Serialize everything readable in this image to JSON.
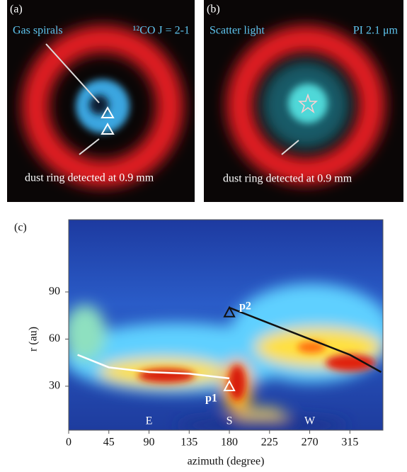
{
  "panels": [
    {
      "label": "(a)",
      "title": "Gas spirals",
      "tag": "¹²CO J = 2-1",
      "caption": "dust ring detected at 0.9 mm"
    },
    {
      "label": "(b)",
      "title": "Scatter light",
      "tag": "PI 2.1 μm",
      "caption": "dust ring detected at 0.9 mm"
    }
  ],
  "chart_data": {
    "type": "line",
    "label": "(c)",
    "xlabel": "azimuth (degree)",
    "ylabel": "r (au)",
    "xlim": [
      0,
      352
    ],
    "ylim": [
      2,
      136
    ],
    "xticks": [
      0,
      45,
      90,
      135,
      180,
      225,
      270,
      315
    ],
    "yticks": [
      30,
      60,
      90
    ],
    "series": [
      {
        "color": "#ffffff",
        "x": [
          10,
          45,
          90,
          135,
          180
        ],
        "values": [
          50,
          42,
          39,
          38,
          35
        ]
      },
      {
        "color": "#111111",
        "x": [
          180,
          225,
          270,
          315,
          350
        ],
        "values": [
          80,
          70,
          60,
          50,
          39
        ]
      }
    ],
    "points": [
      {
        "label": "p1",
        "x": 180,
        "y": 30
      },
      {
        "label": "p2",
        "x": 180,
        "y": 77
      }
    ],
    "directions": [
      {
        "label": "E",
        "x": 90
      },
      {
        "label": "S",
        "x": 180
      },
      {
        "label": "W",
        "x": 270
      }
    ]
  }
}
